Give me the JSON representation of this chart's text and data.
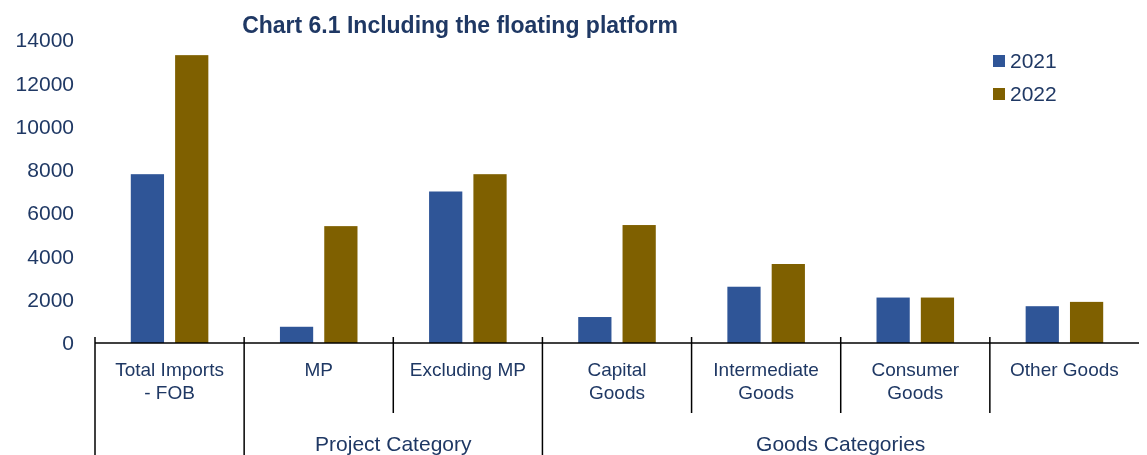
{
  "chart_data": {
    "type": "bar",
    "title": "Chart 6.1 Including the floating platform",
    "categories": [
      "Total Imports - FOB",
      "MP",
      "Excluding MP",
      "Capital Goods",
      "Intermediate Goods",
      "Consumer Goods",
      "Other Goods"
    ],
    "series": [
      {
        "name": "2021",
        "color": "#2f5597",
        "values": [
          7800,
          750,
          7000,
          1200,
          2600,
          2100,
          1700
        ]
      },
      {
        "name": "2022",
        "color": "#7f6000",
        "values": [
          13300,
          5400,
          7800,
          5450,
          3650,
          2100,
          1900
        ]
      }
    ],
    "ylim": [
      0,
      14000
    ],
    "yticks": [
      0,
      2000,
      4000,
      6000,
      8000,
      10000,
      12000,
      14000
    ],
    "annotations": [
      "Project Category",
      "Goods Categories"
    ],
    "grid": false,
    "legend": "top right"
  }
}
